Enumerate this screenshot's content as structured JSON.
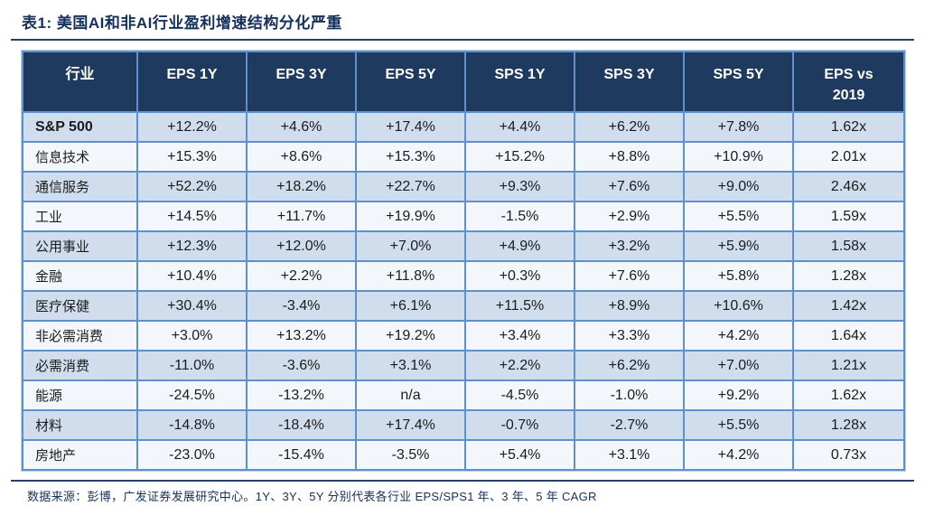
{
  "title": "表1:  美国AI和非AI行业盈利增速结构分化严重",
  "table": {
    "columns": [
      "行业",
      "EPS 1Y",
      "EPS 3Y",
      "EPS 5Y",
      "SPS 1Y",
      "SPS 3Y",
      "SPS 5Y",
      "EPS vs 2019"
    ],
    "rows": [
      {
        "industry": "S&P 500",
        "bold": true,
        "values": [
          "+12.2%",
          "+4.6%",
          "+17.4%",
          "+4.4%",
          "+6.2%",
          "+7.8%",
          "1.62x"
        ]
      },
      {
        "industry": "信息技术",
        "bold": false,
        "values": [
          "+15.3%",
          "+8.6%",
          "+15.3%",
          "+15.2%",
          "+8.8%",
          "+10.9%",
          "2.01x"
        ]
      },
      {
        "industry": "通信服务",
        "bold": false,
        "values": [
          "+52.2%",
          "+18.2%",
          "+22.7%",
          "+9.3%",
          "+7.6%",
          "+9.0%",
          "2.46x"
        ]
      },
      {
        "industry": "工业",
        "bold": false,
        "values": [
          "+14.5%",
          "+11.7%",
          "+19.9%",
          "-1.5%",
          "+2.9%",
          "+5.5%",
          "1.59x"
        ]
      },
      {
        "industry": "公用事业",
        "bold": false,
        "values": [
          "+12.3%",
          "+12.0%",
          "+7.0%",
          "+4.9%",
          "+3.2%",
          "+5.9%",
          "1.58x"
        ]
      },
      {
        "industry": "金融",
        "bold": false,
        "values": [
          "+10.4%",
          "+2.2%",
          "+11.8%",
          "+0.3%",
          "+7.6%",
          "+5.8%",
          "1.28x"
        ]
      },
      {
        "industry": "医疗保健",
        "bold": false,
        "values": [
          "+30.4%",
          "-3.4%",
          "+6.1%",
          "+11.5%",
          "+8.9%",
          "+10.6%",
          "1.42x"
        ]
      },
      {
        "industry": "非必需消费",
        "bold": false,
        "values": [
          "+3.0%",
          "+13.2%",
          "+19.2%",
          "+3.4%",
          "+3.3%",
          "+4.2%",
          "1.64x"
        ]
      },
      {
        "industry": "必需消费",
        "bold": false,
        "values": [
          "-11.0%",
          "-3.6%",
          "+3.1%",
          "+2.2%",
          "+6.2%",
          "+7.0%",
          "1.21x"
        ]
      },
      {
        "industry": "能源",
        "bold": false,
        "values": [
          "-24.5%",
          "-13.2%",
          "n/a",
          "-4.5%",
          "-1.0%",
          "+9.2%",
          "1.62x"
        ]
      },
      {
        "industry": "材料",
        "bold": false,
        "values": [
          "-14.8%",
          "-18.4%",
          "+17.4%",
          "-0.7%",
          "-2.7%",
          "+5.5%",
          "1.28x"
        ]
      },
      {
        "industry": "房地产",
        "bold": false,
        "values": [
          "-23.0%",
          "-15.4%",
          "-3.5%",
          "+5.4%",
          "+3.1%",
          "+4.2%",
          "0.73x"
        ]
      }
    ]
  },
  "footer": "数据来源：彭博，广发证券发展研究中心。1Y、3Y、5Y 分别代表各行业 EPS/SPS1 年、3 年、5 年 CAGR",
  "colors": {
    "header_background": "#1e3a5f",
    "header_text": "#ffffff",
    "border": "#5f8fcc",
    "row_alternate": "#cfdded",
    "row_light": "#f3f6fb",
    "title_text": "#16305c"
  }
}
